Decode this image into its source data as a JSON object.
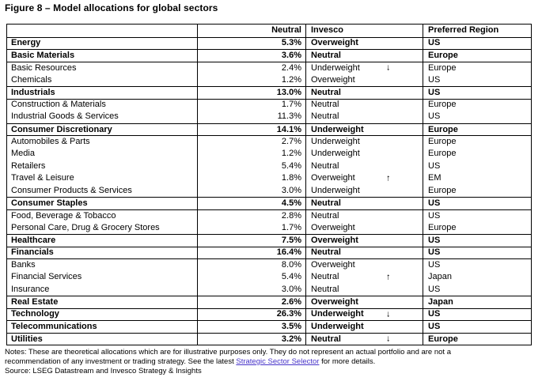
{
  "title": "Figure 8 – Model allocations for global sectors",
  "table": {
    "headers": [
      "",
      "Neutral",
      "Invesco",
      "Preferred Region"
    ],
    "rows": [
      {
        "sector": "Energy",
        "neutral": "5.3%",
        "invesco": "Overweight",
        "arrow": "",
        "region": "US",
        "bold": true
      },
      {
        "sector": "Basic Materials",
        "neutral": "3.6%",
        "invesco": "Neutral",
        "arrow": "",
        "region": "Europe",
        "bold": true
      },
      {
        "sector": "Basic Resources",
        "neutral": "2.4%",
        "invesco": "Underweight",
        "arrow": "↓",
        "region": "Europe",
        "bold": false
      },
      {
        "sector": "Chemicals",
        "neutral": "1.2%",
        "invesco": "Overweight",
        "arrow": "",
        "region": "US",
        "bold": false
      },
      {
        "sector": "Industrials",
        "neutral": "13.0%",
        "invesco": "Neutral",
        "arrow": "",
        "region": "US",
        "bold": true
      },
      {
        "sector": "Construction & Materials",
        "neutral": "1.7%",
        "invesco": "Neutral",
        "arrow": "",
        "region": "Europe",
        "bold": false
      },
      {
        "sector": "Industrial Goods & Services",
        "neutral": "11.3%",
        "invesco": "Neutral",
        "arrow": "",
        "region": "US",
        "bold": false
      },
      {
        "sector": "Consumer Discretionary",
        "neutral": "14.1%",
        "invesco": "Underweight",
        "arrow": "",
        "region": "Europe",
        "bold": true
      },
      {
        "sector": "Automobiles & Parts",
        "neutral": "2.7%",
        "invesco": "Underweight",
        "arrow": "",
        "region": "Europe",
        "bold": false
      },
      {
        "sector": "Media",
        "neutral": "1.2%",
        "invesco": "Underweight",
        "arrow": "",
        "region": "Europe",
        "bold": false
      },
      {
        "sector": "Retailers",
        "neutral": "5.4%",
        "invesco": "Neutral",
        "arrow": "",
        "region": "US",
        "bold": false
      },
      {
        "sector": "Travel & Leisure",
        "neutral": "1.8%",
        "invesco": "Overweight",
        "arrow": "↑",
        "region": "EM",
        "bold": false
      },
      {
        "sector": "Consumer Products & Services",
        "neutral": "3.0%",
        "invesco": "Underweight",
        "arrow": "",
        "region": "Europe",
        "bold": false
      },
      {
        "sector": "Consumer Staples",
        "neutral": "4.5%",
        "invesco": "Neutral",
        "arrow": "",
        "region": "US",
        "bold": true
      },
      {
        "sector": "Food, Beverage & Tobacco",
        "neutral": "2.8%",
        "invesco": "Neutral",
        "arrow": "",
        "region": "US",
        "bold": false
      },
      {
        "sector": "Personal Care, Drug & Grocery Stores",
        "neutral": "1.7%",
        "invesco": "Overweight",
        "arrow": "",
        "region": "Europe",
        "bold": false
      },
      {
        "sector": "Healthcare",
        "neutral": "7.5%",
        "invesco": "Overweight",
        "arrow": "",
        "region": "US",
        "bold": true
      },
      {
        "sector": "Financials",
        "neutral": "16.4%",
        "invesco": "Neutral",
        "arrow": "",
        "region": "US",
        "bold": true
      },
      {
        "sector": "Banks",
        "neutral": "8.0%",
        "invesco": "Overweight",
        "arrow": "",
        "region": "US",
        "bold": false
      },
      {
        "sector": "Financial Services",
        "neutral": "5.4%",
        "invesco": "Neutral",
        "arrow": "↑",
        "region": "Japan",
        "bold": false
      },
      {
        "sector": "Insurance",
        "neutral": "3.0%",
        "invesco": "Neutral",
        "arrow": "",
        "region": "US",
        "bold": false
      },
      {
        "sector": "Real Estate",
        "neutral": "2.6%",
        "invesco": "Overweight",
        "arrow": "",
        "region": "Japan",
        "bold": true
      },
      {
        "sector": "Technology",
        "neutral": "26.3%",
        "invesco": "Underweight",
        "arrow": "↓",
        "region": "US",
        "bold": true
      },
      {
        "sector": "Telecommunications",
        "neutral": "3.5%",
        "invesco": "Underweight",
        "arrow": "",
        "region": "US",
        "bold": true
      },
      {
        "sector": "Utilities",
        "neutral": "3.2%",
        "invesco": "Neutral",
        "arrow": "↓",
        "region": "Europe",
        "bold": true
      }
    ]
  },
  "notes": {
    "line1": "Notes: These are theoretical allocations which are for illustrative purposes only. They do not represent an actual portfolio and are not a",
    "line2_before_link": "recommendation of any investment or trading strategy. See the latest ",
    "link_text": "Strategic Sector Selector",
    "line2_after_link": " for more details.",
    "source": "Source: LSEG Datastream and Invesco Strategy & Insights"
  },
  "colors": {
    "link_color": "#4733c9",
    "border_color": "#000000",
    "text_color": "#000000",
    "background": "#ffffff"
  }
}
